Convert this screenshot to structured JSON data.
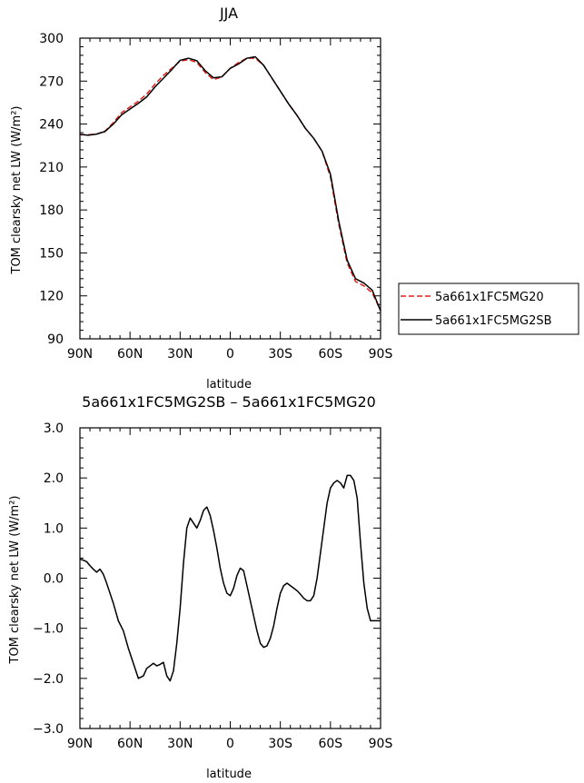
{
  "chart_data": [
    {
      "type": "line",
      "title": "JJA",
      "xlabel": "latitude",
      "ylabel": "TOM clearsky net LW (W/m²)",
      "xlim": [
        -90,
        90
      ],
      "ylim": [
        90,
        300
      ],
      "xticks": [
        -90,
        -60,
        -30,
        0,
        30,
        60,
        90
      ],
      "xtick_labels": [
        "90N",
        "60N",
        "30N",
        "0",
        "30S",
        "60S",
        "90S"
      ],
      "yticks": [
        90,
        120,
        150,
        180,
        210,
        240,
        270,
        300
      ],
      "ytick_labels": [
        "90",
        "120",
        "150",
        "180",
        "210",
        "240",
        "270",
        "300"
      ],
      "legend_position": "right",
      "series": [
        {
          "name": "5a661x1FC5MG20",
          "color": "#e0201c",
          "dash": "dashed",
          "x": [
            -90,
            -85,
            -80,
            -75,
            -70,
            -65,
            -60,
            -55,
            -50,
            -45,
            -40,
            -35,
            -30,
            -25,
            -20,
            -15,
            -10,
            -5,
            0,
            5,
            10,
            15,
            20,
            25,
            30,
            35,
            40,
            45,
            50,
            55,
            60,
            65,
            70,
            75,
            80,
            85,
            90
          ],
          "y": [
            232.5,
            232.5,
            233,
            235,
            241,
            248,
            252,
            256,
            261,
            268,
            274,
            279,
            284,
            285,
            283,
            276,
            271,
            273,
            279,
            283,
            286,
            286,
            281,
            272,
            263,
            254,
            246,
            237,
            230,
            221,
            203,
            170,
            143,
            130,
            127,
            122,
            110
          ]
        },
        {
          "name": "5a661x1FC5MG2SB",
          "color": "#000000",
          "dash": "solid",
          "x": [
            -90,
            -85,
            -80,
            -75,
            -70,
            -65,
            -60,
            -55,
            -50,
            -45,
            -40,
            -35,
            -30,
            -25,
            -20,
            -15,
            -10,
            -5,
            0,
            5,
            10,
            15,
            20,
            25,
            30,
            35,
            40,
            45,
            50,
            55,
            60,
            65,
            70,
            75,
            80,
            85,
            90
          ],
          "y": [
            232.8,
            232.2,
            233,
            234.8,
            240,
            246.5,
            250.5,
            254.5,
            259,
            266,
            272,
            278,
            284.5,
            286,
            284.2,
            277.3,
            272.3,
            273,
            278.9,
            282,
            286,
            287,
            281,
            272,
            263,
            254,
            246,
            237,
            230,
            221,
            205,
            172,
            145,
            132,
            129,
            124,
            109.5
          ]
        }
      ]
    },
    {
      "type": "line",
      "title": "5a661x1FC5MG2SB – 5a661x1FC5MG20",
      "xlabel": "latitude",
      "ylabel": "TOM clearsky net LW (W/m²)",
      "xlim": [
        -90,
        90
      ],
      "ylim": [
        -3.0,
        3.0
      ],
      "xticks": [
        -90,
        -60,
        -30,
        0,
        30,
        60,
        90
      ],
      "xtick_labels": [
        "90N",
        "60N",
        "30N",
        "0",
        "30S",
        "60S",
        "90S"
      ],
      "yticks": [
        -3.0,
        -2.0,
        -1.0,
        0.0,
        1.0,
        2.0,
        3.0
      ],
      "ytick_labels": [
        "−3.0",
        "−2.0",
        "−1.0",
        "0.0",
        "1.0",
        "2.0",
        "3.0"
      ],
      "series": [
        {
          "color": "#000000",
          "dash": "solid",
          "x": [
            -90,
            -88,
            -86,
            -84,
            -82,
            -80,
            -78,
            -76,
            -74,
            -72,
            -70,
            -67,
            -64,
            -61,
            -58,
            -55,
            -52,
            -50,
            -48,
            -46,
            -44,
            -42,
            -40,
            -38,
            -36,
            -34,
            -32,
            -30,
            -28,
            -26,
            -24,
            -22,
            -20,
            -18,
            -16,
            -14,
            -12,
            -10,
            -8,
            -6,
            -4,
            -2,
            0,
            2,
            4,
            6,
            8,
            10,
            12,
            14,
            16,
            18,
            20,
            22,
            24,
            26,
            28,
            30,
            32,
            34,
            36,
            38,
            40,
            42,
            44,
            46,
            48,
            50,
            52,
            54,
            56,
            58,
            60,
            62,
            64,
            66,
            68,
            70,
            72,
            74,
            76,
            78,
            80,
            82,
            84,
            86,
            88,
            90
          ],
          "y": [
            0.38,
            0.36,
            0.33,
            0.25,
            0.18,
            0.12,
            0.18,
            0.08,
            -0.1,
            -0.3,
            -0.5,
            -0.85,
            -1.05,
            -1.4,
            -1.7,
            -2.0,
            -1.95,
            -1.8,
            -1.75,
            -1.7,
            -1.75,
            -1.72,
            -1.68,
            -1.95,
            -2.05,
            -1.85,
            -1.3,
            -0.6,
            0.3,
            1.0,
            1.2,
            1.1,
            1.0,
            1.15,
            1.35,
            1.42,
            1.25,
            0.95,
            0.6,
            0.2,
            -0.1,
            -0.3,
            -0.35,
            -0.2,
            0.05,
            0.2,
            0.15,
            -0.15,
            -0.45,
            -0.75,
            -1.05,
            -1.3,
            -1.38,
            -1.35,
            -1.2,
            -0.95,
            -0.6,
            -0.3,
            -0.15,
            -0.1,
            -0.15,
            -0.2,
            -0.25,
            -0.32,
            -0.4,
            -0.45,
            -0.45,
            -0.35,
            0.0,
            0.5,
            1.0,
            1.5,
            1.8,
            1.9,
            1.95,
            1.9,
            1.8,
            2.05,
            2.05,
            1.95,
            1.6,
            0.7,
            -0.1,
            -0.6,
            -0.85,
            -0.85,
            -0.85,
            -0.85
          ]
        }
      ]
    }
  ]
}
